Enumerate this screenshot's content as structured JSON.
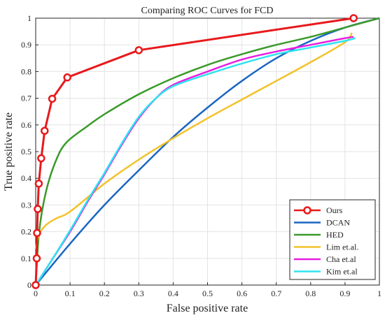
{
  "chart_data": {
    "type": "line",
    "title": "Comparing ROC Curves for FCD",
    "xlabel": "False positive rate",
    "ylabel": "True positive rate",
    "xlim": [
      0,
      1
    ],
    "ylim": [
      0,
      1
    ],
    "xticks": [
      "0",
      "0.1",
      "0.2",
      "0.3",
      "0.4",
      "0.5",
      "0.6",
      "0.7",
      "0.8",
      "0.9",
      "1"
    ],
    "yticks": [
      "0",
      "0.1",
      "0.2",
      "0.3",
      "0.4",
      "0.5",
      "0.6",
      "0.7",
      "0.8",
      "0.9",
      "1"
    ],
    "grid": true,
    "legend_position": "bottom-right",
    "series": [
      {
        "name": "Ours",
        "color": "#e8191b",
        "markers": true,
        "points": [
          [
            0,
            0
          ],
          [
            0.003,
            0.1
          ],
          [
            0.004,
            0.195
          ],
          [
            0.006,
            0.285
          ],
          [
            0.009,
            0.38
          ],
          [
            0.016,
            0.475
          ],
          [
            0.026,
            0.578
          ],
          [
            0.048,
            0.698
          ],
          [
            0.092,
            0.778
          ],
          [
            0.3,
            0.88
          ],
          [
            0.925,
            1.0
          ]
        ]
      },
      {
        "name": "DCAN",
        "color": "#1a66c2",
        "markers": false,
        "points": [
          [
            0,
            0
          ],
          [
            0.1,
            0.155
          ],
          [
            0.2,
            0.3
          ],
          [
            0.3,
            0.43
          ],
          [
            0.4,
            0.555
          ],
          [
            0.5,
            0.665
          ],
          [
            0.6,
            0.765
          ],
          [
            0.7,
            0.85
          ],
          [
            0.8,
            0.915
          ],
          [
            0.9,
            0.965
          ],
          [
            1.0,
            1.0
          ]
        ]
      },
      {
        "name": "HED",
        "color": "#3a9a2a",
        "markers": false,
        "points": [
          [
            0,
            0
          ],
          [
            0.01,
            0.2
          ],
          [
            0.03,
            0.35
          ],
          [
            0.06,
            0.47
          ],
          [
            0.09,
            0.535
          ],
          [
            0.15,
            0.595
          ],
          [
            0.2,
            0.64
          ],
          [
            0.3,
            0.715
          ],
          [
            0.4,
            0.775
          ],
          [
            0.5,
            0.825
          ],
          [
            0.6,
            0.865
          ],
          [
            0.7,
            0.9
          ],
          [
            0.8,
            0.93
          ],
          [
            0.9,
            0.965
          ],
          [
            1.0,
            1.0
          ]
        ]
      },
      {
        "name": "Lim et.al.",
        "color": "#f2c22a",
        "markers": false,
        "points": [
          [
            0,
            0.135
          ],
          [
            0.01,
            0.19
          ],
          [
            0.03,
            0.225
          ],
          [
            0.06,
            0.25
          ],
          [
            0.1,
            0.275
          ],
          [
            0.2,
            0.38
          ],
          [
            0.3,
            0.47
          ],
          [
            0.4,
            0.55
          ],
          [
            0.5,
            0.625
          ],
          [
            0.6,
            0.695
          ],
          [
            0.7,
            0.765
          ],
          [
            0.8,
            0.835
          ],
          [
            0.9,
            0.91
          ],
          [
            0.92,
            0.945
          ]
        ]
      },
      {
        "name": "Cha et.al",
        "color": "#e81ee0",
        "markers": false,
        "points": [
          [
            0,
            0
          ],
          [
            0.05,
            0.1
          ],
          [
            0.1,
            0.2
          ],
          [
            0.15,
            0.31
          ],
          [
            0.2,
            0.415
          ],
          [
            0.25,
            0.525
          ],
          [
            0.3,
            0.625
          ],
          [
            0.35,
            0.7
          ],
          [
            0.4,
            0.75
          ],
          [
            0.5,
            0.8
          ],
          [
            0.6,
            0.845
          ],
          [
            0.7,
            0.875
          ],
          [
            0.8,
            0.9
          ],
          [
            0.9,
            0.925
          ],
          [
            0.925,
            0.93
          ]
        ]
      },
      {
        "name": "Kim et.al",
        "color": "#2ee3ef",
        "markers": false,
        "points": [
          [
            0,
            0
          ],
          [
            0.05,
            0.1
          ],
          [
            0.1,
            0.205
          ],
          [
            0.15,
            0.315
          ],
          [
            0.2,
            0.42
          ],
          [
            0.25,
            0.53
          ],
          [
            0.3,
            0.63
          ],
          [
            0.35,
            0.7
          ],
          [
            0.4,
            0.745
          ],
          [
            0.5,
            0.79
          ],
          [
            0.6,
            0.83
          ],
          [
            0.7,
            0.865
          ],
          [
            0.8,
            0.89
          ],
          [
            0.9,
            0.915
          ],
          [
            0.93,
            0.925
          ]
        ]
      }
    ]
  }
}
